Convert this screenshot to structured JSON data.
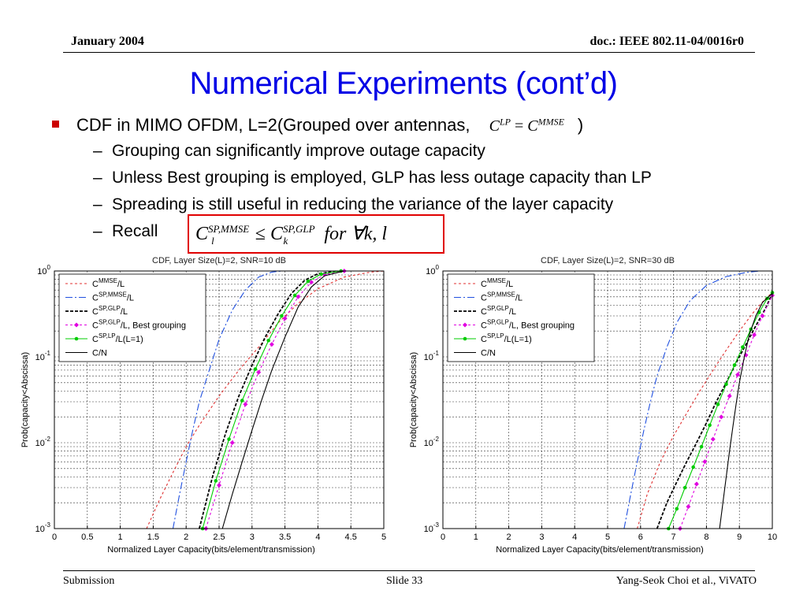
{
  "header": {
    "date": "January 2004",
    "doc": "doc.: IEEE 802.11-04/0016r0"
  },
  "title": "Numerical Experiments (cont’d)",
  "bullets": {
    "main_prefix": "CDF in MIMO OFDM, L=2(Grouped over antennas,",
    "main_suffix": ")",
    "main_formula": {
      "c1": "C",
      "s1": "LP",
      "eq": "=",
      "c2": "C",
      "s2": "MMSE"
    },
    "sub": [
      "Grouping can significantly improve outage capacity",
      "Unless Best grouping is employed, GLP has less outage capacity than LP",
      "Spreading is still useful in reducing the variance of the layer capacity",
      "Recall"
    ],
    "recall_formula": {
      "c1": "C",
      "sup1": "SP,MMSE",
      "sub1": "l",
      "leq": "≤",
      "c2": "C",
      "sup2": "SP,GLP",
      "sub2": "k",
      "tail": "for ∀k, l"
    }
  },
  "footer": {
    "left": "Submission",
    "center": "Slide 33",
    "right": "Yang-Seok Choi et al., ViVATO"
  },
  "chart_data": [
    {
      "type": "line",
      "title": "CDF, Layer Size(L)=2, SNR=10 dB",
      "xlabel": "Normalized Layer Capacity(bits/element/transmission)",
      "ylabel": "Prob(capacity<Abscissa)",
      "xlim": [
        0,
        5
      ],
      "ylim": [
        0.001,
        1
      ],
      "yscale": "log",
      "xticks": [
        "0",
        "0.5",
        "1",
        "1.5",
        "2",
        "2.5",
        "3",
        "3.5",
        "4",
        "4.5",
        "5"
      ],
      "yticks": [
        {
          "base": "10",
          "exp": "-3",
          "v": 0.001
        },
        {
          "base": "10",
          "exp": "-2",
          "v": 0.01
        },
        {
          "base": "10",
          "exp": "-1",
          "v": 0.1
        },
        {
          "base": "10",
          "exp": "0",
          "v": 1
        }
      ],
      "grid": true,
      "legend_position": "top-left",
      "series": [
        {
          "legend_main": "C",
          "legend_sup": "MMSE",
          "legend_suffix": "/L",
          "color": "#e03030",
          "dash": "3,3",
          "marker": "none",
          "x": [
            1.4,
            1.6,
            1.8,
            2.0,
            2.2,
            2.5,
            2.8,
            3.1,
            3.4,
            3.7,
            4.0,
            4.4,
            4.8,
            5.0
          ],
          "y": [
            0.001,
            0.0022,
            0.0045,
            0.009,
            0.016,
            0.035,
            0.07,
            0.13,
            0.25,
            0.42,
            0.62,
            0.85,
            0.97,
            1.0
          ]
        },
        {
          "legend_main": "C",
          "legend_sup": "SP,MMSE",
          "legend_suffix": "/L",
          "color": "#2050e0",
          "dash": "9,3,2,3",
          "marker": "none",
          "x": [
            1.8,
            1.9,
            2.0,
            2.1,
            2.2,
            2.35,
            2.5,
            2.7,
            2.9,
            3.1,
            3.3,
            3.45
          ],
          "y": [
            0.001,
            0.0025,
            0.006,
            0.014,
            0.03,
            0.07,
            0.16,
            0.35,
            0.6,
            0.85,
            0.97,
            1.0
          ]
        },
        {
          "legend_main": "C",
          "legend_sup": "SP,GLP",
          "legend_suffix": "/L",
          "color": "#000000",
          "dash": "4,2",
          "marker": "none",
          "x": [
            2.2,
            2.4,
            2.6,
            2.8,
            3.0,
            3.2,
            3.4,
            3.6,
            3.8,
            4.0,
            4.3
          ],
          "y": [
            0.001,
            0.004,
            0.013,
            0.035,
            0.08,
            0.17,
            0.32,
            0.55,
            0.78,
            0.93,
            1.0
          ]
        },
        {
          "legend_main": "C",
          "legend_sup": "SP,GLP",
          "legend_suffix": "/L, Best grouping",
          "color": "#e000e0",
          "dash": "3,3",
          "marker": "diamond",
          "x": [
            2.3,
            2.5,
            2.7,
            2.9,
            3.1,
            3.3,
            3.5,
            3.7,
            3.9,
            4.1,
            4.4
          ],
          "y": [
            0.001,
            0.0032,
            0.01,
            0.028,
            0.066,
            0.14,
            0.28,
            0.5,
            0.74,
            0.91,
            1.0
          ]
        },
        {
          "legend_main": "C",
          "legend_sup": "SP,LP",
          "legend_suffix": "/L(L=1)",
          "color": "#00cc00",
          "dash": "",
          "marker": "dot",
          "x": [
            2.25,
            2.45,
            2.65,
            2.85,
            3.05,
            3.25,
            3.45,
            3.65,
            3.85,
            4.05,
            4.35
          ],
          "y": [
            0.001,
            0.0036,
            0.011,
            0.031,
            0.072,
            0.155,
            0.3,
            0.52,
            0.76,
            0.92,
            1.0
          ]
        },
        {
          "legend_main": "C/N",
          "legend_sup": "",
          "legend_suffix": "",
          "color": "#000000",
          "dash": "",
          "marker": "none",
          "x": [
            2.55,
            2.7,
            2.85,
            3.0,
            3.15,
            3.3,
            3.5,
            3.7,
            3.9,
            4.1,
            4.4
          ],
          "y": [
            0.001,
            0.0025,
            0.006,
            0.014,
            0.032,
            0.07,
            0.17,
            0.38,
            0.65,
            0.88,
            1.0
          ]
        }
      ]
    },
    {
      "type": "line",
      "title": "CDF, Layer Size(L)=2, SNR=30 dB",
      "xlabel": "Normalized Layer Capacity(bits/element/transmission)",
      "ylabel": "Prob(capacity<Abscissa)",
      "xlim": [
        0,
        10
      ],
      "ylim": [
        0.001,
        1
      ],
      "yscale": "log",
      "xticks": [
        "0",
        "1",
        "2",
        "3",
        "4",
        "5",
        "6",
        "7",
        "8",
        "9",
        "10"
      ],
      "yticks": [
        {
          "base": "10",
          "exp": "-3",
          "v": 0.001
        },
        {
          "base": "10",
          "exp": "-2",
          "v": 0.01
        },
        {
          "base": "10",
          "exp": "-1",
          "v": 0.1
        },
        {
          "base": "10",
          "exp": "0",
          "v": 1
        }
      ],
      "grid": true,
      "legend_position": "top-left",
      "series": [
        {
          "legend_main": "C",
          "legend_sup": "MMSE",
          "legend_suffix": "/L",
          "color": "#e03030",
          "dash": "3,3",
          "marker": "none",
          "x": [
            5.9,
            6.2,
            6.6,
            7.0,
            7.4,
            7.8,
            8.2,
            8.6,
            9.0,
            9.4,
            9.8,
            10.0
          ],
          "y": [
            0.001,
            0.0025,
            0.006,
            0.012,
            0.022,
            0.04,
            0.07,
            0.12,
            0.2,
            0.32,
            0.48,
            0.56
          ]
        },
        {
          "legend_main": "C",
          "legend_sup": "SP,MMSE",
          "legend_suffix": "/L",
          "color": "#2050e0",
          "dash": "9,3,2,3",
          "marker": "none",
          "x": [
            5.5,
            5.7,
            5.9,
            6.1,
            6.3,
            6.5,
            6.8,
            7.1,
            7.5,
            8.0,
            8.6,
            9.2,
            9.6
          ],
          "y": [
            0.001,
            0.0025,
            0.006,
            0.014,
            0.03,
            0.06,
            0.13,
            0.25,
            0.45,
            0.68,
            0.86,
            0.96,
            1.0
          ]
        },
        {
          "legend_main": "C",
          "legend_sup": "SP,GLP",
          "legend_suffix": "/L",
          "color": "#000000",
          "dash": "4,2",
          "marker": "none",
          "x": [
            6.5,
            6.8,
            7.1,
            7.4,
            7.7,
            8.0,
            8.3,
            8.6,
            8.9,
            9.2,
            9.5,
            9.8,
            10.0
          ],
          "y": [
            0.001,
            0.002,
            0.0035,
            0.006,
            0.01,
            0.017,
            0.03,
            0.05,
            0.085,
            0.14,
            0.23,
            0.37,
            0.55
          ]
        },
        {
          "legend_main": "C",
          "legend_sup": "SP,GLP",
          "legend_suffix": "/L, Best grouping",
          "color": "#e000e0",
          "dash": "3,3",
          "marker": "diamond",
          "x": [
            7.2,
            7.45,
            7.7,
            7.95,
            8.2,
            8.45,
            8.7,
            8.95,
            9.2,
            9.45,
            9.7,
            10.0
          ],
          "y": [
            0.001,
            0.0018,
            0.0033,
            0.006,
            0.011,
            0.02,
            0.035,
            0.062,
            0.105,
            0.18,
            0.3,
            0.52
          ]
        },
        {
          "legend_main": "C",
          "legend_sup": "SP,LP",
          "legend_suffix": "/L(L=1)",
          "color": "#00cc00",
          "dash": "",
          "marker": "dot",
          "x": [
            6.85,
            7.1,
            7.35,
            7.6,
            7.85,
            8.1,
            8.35,
            8.6,
            8.85,
            9.1,
            9.35,
            9.6,
            9.85,
            10.0
          ],
          "y": [
            0.001,
            0.0017,
            0.003,
            0.0052,
            0.009,
            0.016,
            0.028,
            0.048,
            0.08,
            0.13,
            0.21,
            0.33,
            0.48,
            0.56
          ]
        },
        {
          "legend_main": "C/N",
          "legend_sup": "",
          "legend_suffix": "",
          "color": "#000000",
          "dash": "",
          "marker": "none",
          "x": [
            8.4,
            8.5,
            8.6,
            8.7,
            8.8,
            8.9,
            9.0,
            9.15,
            9.3,
            9.5,
            9.7,
            10.0
          ],
          "y": [
            0.001,
            0.002,
            0.004,
            0.008,
            0.015,
            0.028,
            0.05,
            0.1,
            0.18,
            0.3,
            0.43,
            0.55
          ]
        }
      ]
    }
  ]
}
